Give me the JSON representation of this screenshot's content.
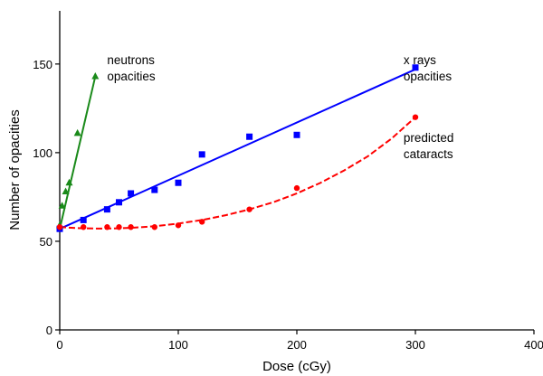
{
  "chart_data": {
    "type": "scatter",
    "xlabel": "Dose (cGy)",
    "ylabel": "Number of opacities",
    "xlim": [
      0,
      400
    ],
    "ylim": [
      0,
      180
    ],
    "xticks": [
      0,
      100,
      200,
      300,
      400
    ],
    "yticks": [
      0,
      50,
      100,
      150
    ],
    "grid": false,
    "series": [
      {
        "name": "neutrons opacities",
        "color": "#1a8a1a",
        "marker": "triangle",
        "line": "solid",
        "x": [
          0,
          2,
          5,
          8,
          15,
          30
        ],
        "y": [
          59,
          70,
          78,
          83,
          111,
          143
        ],
        "fit": {
          "x": [
            0,
            30
          ],
          "y": [
            57,
            143
          ]
        }
      },
      {
        "name": "x rays opacities",
        "color": "#0000ff",
        "marker": "square",
        "line": "solid",
        "x": [
          0,
          20,
          40,
          50,
          60,
          80,
          100,
          120,
          160,
          200,
          300
        ],
        "y": [
          57,
          62,
          68,
          72,
          77,
          79,
          83,
          99,
          109,
          110,
          148
        ],
        "fit": {
          "x": [
            0,
            300
          ],
          "y": [
            57,
            147
          ]
        }
      },
      {
        "name": "predicted cataracts",
        "color": "#ff0000",
        "marker": "circle",
        "line": "dashed",
        "x": [
          0,
          20,
          40,
          50,
          60,
          80,
          100,
          120,
          160,
          200,
          300
        ],
        "y": [
          58,
          58,
          58,
          58,
          58,
          58,
          59,
          61,
          68,
          80,
          120
        ],
        "fit": {
          "x": [
            0,
            10,
            20,
            30,
            40,
            50,
            60,
            70,
            80,
            90,
            100,
            120,
            140,
            160,
            180,
            200,
            220,
            240,
            260,
            280,
            300
          ],
          "y": [
            58,
            57.6,
            57.3,
            57.2,
            57.2,
            57.3,
            57.6,
            58,
            58.5,
            59.2,
            60,
            62,
            64.7,
            68,
            72,
            77,
            83,
            90,
            98,
            108,
            120
          ]
        }
      }
    ],
    "annotations": [
      {
        "lines": [
          "neutrons",
          "opacities"
        ],
        "x": 40,
        "y": 150
      },
      {
        "lines": [
          "x rays",
          "opacities"
        ],
        "x": 290,
        "y": 150
      },
      {
        "lines": [
          "predicted",
          "cataracts"
        ],
        "x": 290,
        "y": 106
      }
    ]
  }
}
